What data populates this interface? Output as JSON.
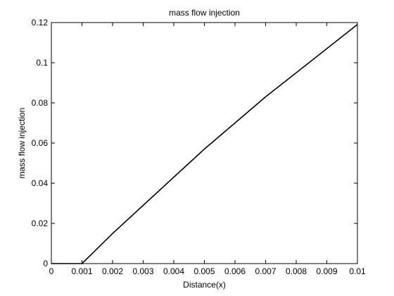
{
  "chart_data": {
    "type": "line",
    "title": "mass flow injection",
    "xlabel": "Distance(x)",
    "ylabel": "mass flow injection",
    "xlim": [
      0,
      0.01
    ],
    "ylim": [
      0,
      0.12
    ],
    "x_ticks": [
      0,
      0.001,
      0.002,
      0.003,
      0.004,
      0.005,
      0.006,
      0.007,
      0.008,
      0.009,
      0.01
    ],
    "x_tick_labels": [
      "0",
      "0.001",
      "0.002",
      "0.003",
      "0.004",
      "0.005",
      "0.006",
      "0.007",
      "0.008",
      "0.009",
      "0.01"
    ],
    "y_ticks": [
      0,
      0.02,
      0.04,
      0.06,
      0.08,
      0.1,
      0.12
    ],
    "y_tick_labels": [
      "0",
      "0.02",
      "0.04",
      "0.06",
      "0.08",
      "0.1",
      "0.12"
    ],
    "grid": false,
    "legend": "none",
    "series": [
      {
        "color": "#000000",
        "x": [
          0,
          0.001,
          0.002,
          0.003,
          0.004,
          0.005,
          0.006,
          0.007,
          0.008,
          0.009,
          0.01
        ],
        "y": [
          0,
          0,
          0.015,
          0.029,
          0.043,
          0.057,
          0.07,
          0.083,
          0.095,
          0.107,
          0.119
        ]
      }
    ]
  }
}
